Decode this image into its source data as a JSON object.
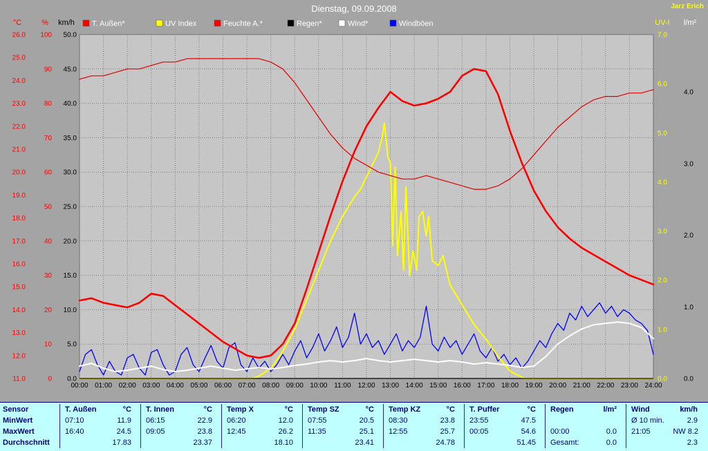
{
  "colors": {
    "page_bg": "#a4a4a4",
    "plot_bg": "#c6c6c6",
    "grid": "#7d7d7d",
    "title_text": "#ffffff",
    "station_text": "#ffff00",
    "table_bg": "#c0ffff",
    "table_text": "#000080",
    "temp_line": "#ff0000",
    "humidity_line": "#e00000",
    "uv_line": "#ffff00",
    "wind_line": "#ffffff",
    "gust_line": "#0000ff",
    "rain_line": "#000000"
  },
  "chart_data": {
    "type": "line",
    "title": "Dienstag, 09.09.2008",
    "author": "Jarz Erich",
    "grid": "dotted",
    "legend_position": "top",
    "x_axis": {
      "min": 0,
      "max": 24,
      "tick_labels": [
        "00:00",
        "01:00",
        "02:00",
        "03:00",
        "04:00",
        "05:00",
        "06:00",
        "07:00",
        "08:00",
        "09:00",
        "10:00",
        "11:00",
        "12:00",
        "13:00",
        "14:00",
        "15:00",
        "16:00",
        "17:00",
        "18:00",
        "19:00",
        "20:00",
        "21:00",
        "22:00",
        "23:00",
        "24:00"
      ]
    },
    "axes": {
      "temp": {
        "label": "°C",
        "color": "#ff0000",
        "min": 11,
        "max": 26,
        "ticks": [
          "26.0",
          "25.0",
          "24.0",
          "23.0",
          "22.0",
          "21.0",
          "20.0",
          "19.0",
          "18.0",
          "17.0",
          "16.0",
          "15.0",
          "14.0",
          "13.0",
          "12.0",
          "11.0"
        ]
      },
      "humidity": {
        "label": "%",
        "color": "#ff0000",
        "min": 0,
        "max": 100,
        "ticks": [
          "100",
          "90",
          "80",
          "70",
          "60",
          "50",
          "40",
          "30",
          "20",
          "10",
          "0"
        ]
      },
      "wind": {
        "label": "km/h",
        "color": "#000000",
        "min": 0,
        "max": 50,
        "ticks": [
          "50.0",
          "45.0",
          "40.0",
          "35.0",
          "30.0",
          "25.0",
          "20.0",
          "15.0",
          "10.0",
          "5.0",
          "0.0"
        ]
      },
      "uv": {
        "label": "UV-I",
        "color": "#ffff00",
        "min": 0,
        "max": 7,
        "ticks": [
          "7.0",
          "6.0",
          "5.0",
          "4.0",
          "3.0",
          "2.0",
          "1.0",
          "0.0"
        ]
      },
      "rain": {
        "label": "l/m²",
        "color": "#000000",
        "header_color": "#ffffff",
        "min": 0,
        "max": 4.8,
        "ticks": [
          "4.0",
          "3.0",
          "2.0",
          "1.0",
          "0.0"
        ]
      }
    },
    "legend": [
      {
        "label": "T. Außen*",
        "color": "#ff0000"
      },
      {
        "label": "UV Index",
        "color": "#ffff00"
      },
      {
        "label": "Feuchte A.*",
        "color": "#ff0000"
      },
      {
        "label": "Regen*",
        "color": "#000000"
      },
      {
        "label": "Wind*",
        "color": "#ffffff"
      },
      {
        "label": "Windböen",
        "color": "#0000ff"
      }
    ],
    "series": [
      {
        "id": "windboeen",
        "name": "Windböen",
        "axis": "wind",
        "color": "#0000ff",
        "width": 1.3,
        "step": 0.25,
        "values": [
          1,
          3.5,
          4.2,
          2,
          0.5,
          2.5,
          1,
          0.5,
          3,
          3.5,
          1.5,
          0.5,
          3.8,
          4.2,
          2,
          0.5,
          1,
          3.5,
          4.5,
          2,
          1,
          3,
          4.8,
          2.5,
          1.5,
          4.5,
          5.2,
          2,
          1,
          3,
          1.5,
          2.5,
          1,
          2,
          3.5,
          2,
          4,
          5.5,
          3,
          4.5,
          6.5,
          4,
          5.5,
          7.5,
          4.5,
          6,
          9.5,
          5,
          6.5,
          4.5,
          5.5,
          3.5,
          5,
          6.5,
          4,
          5.5,
          4.5,
          6,
          10.5,
          5,
          4,
          6,
          4.5,
          5.5,
          3.5,
          5,
          6.5,
          4,
          3,
          4.5,
          2.5,
          3.5,
          2,
          3,
          1.5,
          2.5,
          4,
          5.5,
          4.5,
          6.5,
          8,
          7,
          9.5,
          8.5,
          10.5,
          9,
          10,
          11,
          9.5,
          10.5,
          9,
          10,
          9.5,
          8.5,
          8,
          7,
          3.5
        ]
      },
      {
        "id": "uv-index",
        "name": "UV Index",
        "axis": "uv",
        "color": "#ffff00",
        "width": 2,
        "points": [
          [
            0,
            0
          ],
          [
            7.25,
            0
          ],
          [
            7.5,
            0.05
          ],
          [
            8,
            0.2
          ],
          [
            8.5,
            0.55
          ],
          [
            9,
            1.0
          ],
          [
            9.5,
            1.6
          ],
          [
            10,
            2.2
          ],
          [
            10.5,
            2.8
          ],
          [
            10.75,
            3.05
          ],
          [
            11,
            3.3
          ],
          [
            11.25,
            3.5
          ],
          [
            11.5,
            3.7
          ],
          [
            11.75,
            3.85
          ],
          [
            12,
            4.1
          ],
          [
            12.25,
            4.35
          ],
          [
            12.5,
            4.6
          ],
          [
            12.65,
            4.9
          ],
          [
            12.75,
            5.2
          ],
          [
            12.9,
            4.5
          ],
          [
            13,
            4.4
          ],
          [
            13.1,
            2.7
          ],
          [
            13.2,
            4.3
          ],
          [
            13.3,
            2.5
          ],
          [
            13.45,
            3.4
          ],
          [
            13.55,
            2.2
          ],
          [
            13.65,
            3.9
          ],
          [
            13.8,
            2.1
          ],
          [
            13.95,
            2.6
          ],
          [
            14.1,
            2.2
          ],
          [
            14.2,
            3.3
          ],
          [
            14.35,
            3.4
          ],
          [
            14.5,
            2.9
          ],
          [
            14.6,
            3.3
          ],
          [
            14.75,
            2.4
          ],
          [
            15,
            2.3
          ],
          [
            15.2,
            2.5
          ],
          [
            15.5,
            1.9
          ],
          [
            16,
            1.5
          ],
          [
            16.5,
            1.1
          ],
          [
            17,
            0.8
          ],
          [
            17.5,
            0.45
          ],
          [
            18,
            0.15
          ],
          [
            18.4,
            0.05
          ],
          [
            18.6,
            0
          ],
          [
            24,
            0
          ]
        ]
      },
      {
        "id": "feuchte",
        "name": "Feuchte A.",
        "axis": "humidity",
        "color": "#e00000",
        "width": 1.2,
        "step": 0.5,
        "values": [
          87,
          88,
          88,
          89,
          90,
          90,
          91,
          92,
          92,
          93,
          93,
          93,
          93,
          93,
          93,
          93,
          92,
          90,
          86,
          81,
          76,
          71,
          67,
          64,
          62,
          60,
          59,
          58,
          58,
          59,
          58,
          57,
          56,
          55,
          55,
          56,
          58,
          61,
          65,
          69,
          73,
          76,
          79,
          81,
          82,
          82,
          83,
          83,
          84
        ]
      },
      {
        "id": "t-aussen",
        "name": "T. Außen",
        "axis": "temp",
        "color": "#ff0000",
        "width": 2.6,
        "step": 0.5,
        "values": [
          14.4,
          14.5,
          14.3,
          14.2,
          14.1,
          14.3,
          14.7,
          14.6,
          14.2,
          13.8,
          13.4,
          13.0,
          12.6,
          12.3,
          12.0,
          11.9,
          12.0,
          12.5,
          13.4,
          14.9,
          16.5,
          18.1,
          19.6,
          20.9,
          22.0,
          22.8,
          23.5,
          23.1,
          22.9,
          23.0,
          23.2,
          23.5,
          24.2,
          24.5,
          24.4,
          23.4,
          21.8,
          20.4,
          19.2,
          18.3,
          17.6,
          17.1,
          16.7,
          16.4,
          16.1,
          15.8,
          15.5,
          15.3,
          15.1
        ]
      },
      {
        "id": "wind",
        "name": "Wind",
        "axis": "wind",
        "color": "#ffffff",
        "width": 2,
        "step": 0.5,
        "values": [
          1.8,
          2.2,
          1.5,
          1.0,
          1.2,
          1.5,
          1.8,
          1.3,
          1.0,
          1.2,
          1.5,
          1.8,
          1.5,
          1.2,
          1.4,
          1.6,
          1.4,
          1.6,
          1.9,
          2.1,
          2.4,
          2.6,
          2.4,
          2.6,
          2.9,
          2.6,
          2.4,
          2.6,
          2.8,
          2.6,
          2.4,
          2.6,
          2.4,
          2.1,
          2.3,
          2.1,
          1.9,
          1.6,
          1.8,
          3.2,
          5.0,
          6.2,
          7.2,
          7.8,
          8.0,
          8.2,
          8.0,
          7.4,
          5.8
        ]
      },
      {
        "id": "regen",
        "name": "Regen",
        "axis": "rain",
        "color": "#000000",
        "width": 1.2,
        "points": [
          [
            0,
            0
          ],
          [
            24,
            0
          ]
        ]
      }
    ]
  },
  "table": {
    "row_labels": [
      "Sensor",
      "MinWert",
      "MaxWert",
      "Durchschnitt"
    ],
    "groups": [
      {
        "name": "T. Außen",
        "unit": "°C",
        "min_time": "07:10",
        "min_val": "11.9",
        "max_time": "16:40",
        "max_val": "24.5",
        "avg_label": "",
        "avg": "17.83"
      },
      {
        "name": "T. Innen",
        "unit": "°C",
        "min_time": "06:15",
        "min_val": "22.9",
        "max_time": "09:05",
        "max_val": "23.8",
        "avg_label": "",
        "avg": "23.37"
      },
      {
        "name": "Temp X",
        "unit": "°C",
        "min_time": "06:20",
        "min_val": "12.0",
        "max_time": "12:45",
        "max_val": "26.2",
        "avg_label": "",
        "avg": "18.10"
      },
      {
        "name": "Temp SZ",
        "unit": "°C",
        "min_time": "07:55",
        "min_val": "20.5",
        "max_time": "11:35",
        "max_val": "25.1",
        "avg_label": "",
        "avg": "23.41"
      },
      {
        "name": "Temp KZ",
        "unit": "°C",
        "min_time": "08:30",
        "min_val": "23.8",
        "max_time": "12:55",
        "max_val": "25.7",
        "avg_label": "",
        "avg": "24.78"
      },
      {
        "name": "T. Puffer",
        "unit": "°C",
        "min_time": "23:55",
        "min_val": "47.5",
        "max_time": "00:05",
        "max_val": "54.6",
        "avg_label": "",
        "avg": "51.45"
      },
      {
        "name": "Regen",
        "unit": "l/m²",
        "min_time": "",
        "min_val": "",
        "max_time": "00:00",
        "max_val": "0.0",
        "avg_label": "Gesamt:",
        "avg": "0.0"
      },
      {
        "name": "Wind",
        "unit": "km/h",
        "min_time": "Ø 10 min.",
        "min_val": "2.9",
        "max_time": "21:05",
        "max_val": "NW 8.2",
        "avg_label": "",
        "avg": "2.3"
      }
    ]
  }
}
